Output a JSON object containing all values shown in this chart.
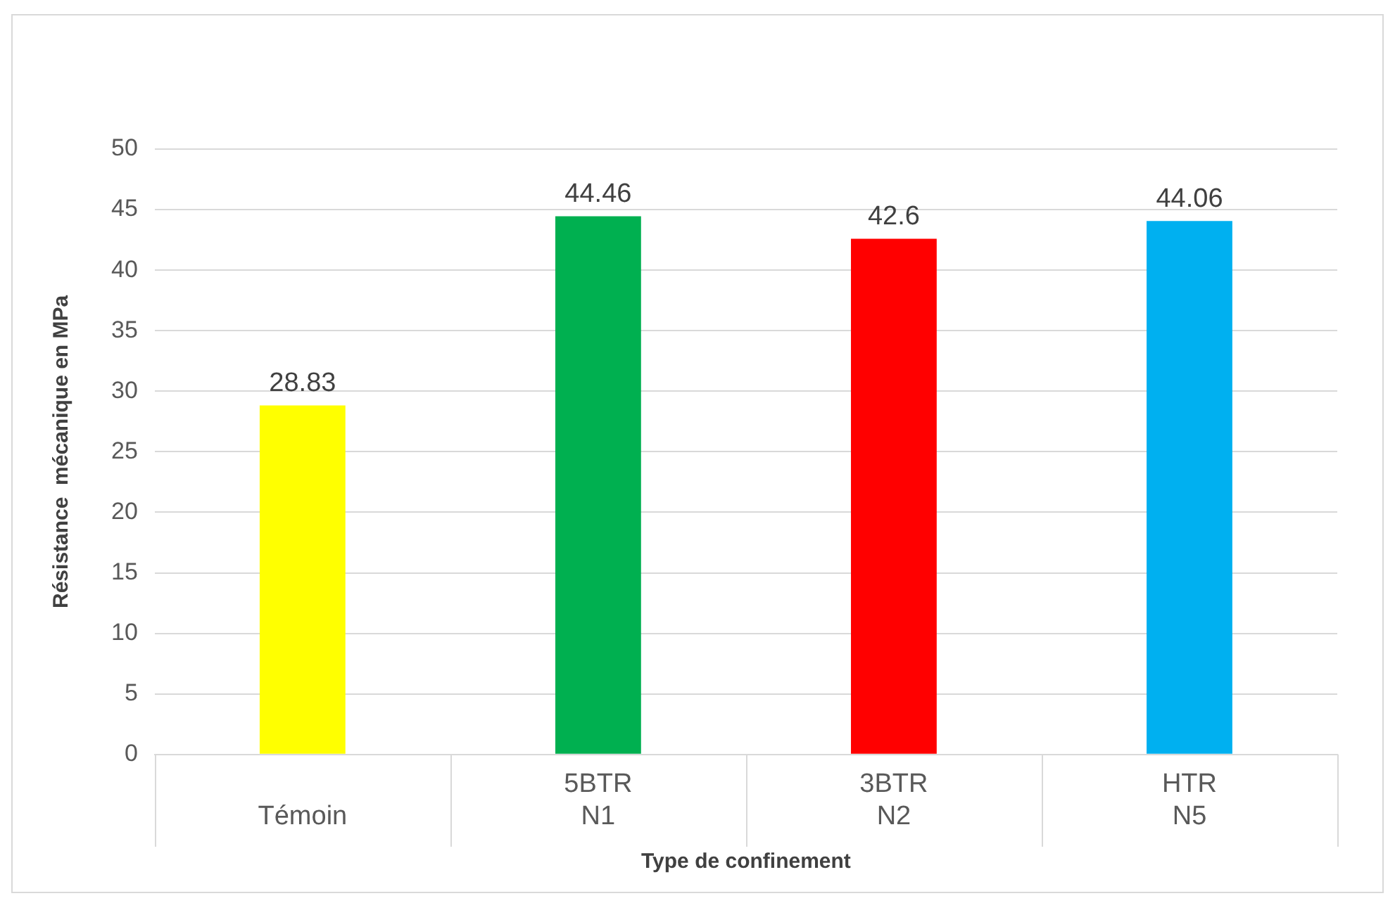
{
  "chart_data": {
    "type": "bar",
    "xlabel": "Type de confinement",
    "ylabel": "Résistance  mécanique en MPa",
    "categories": [
      "Témoin",
      "5BTR\nN1",
      "3BTR\nN2",
      "HTR\nN5"
    ],
    "values": [
      28.83,
      44.46,
      42.6,
      44.06
    ],
    "colors": [
      "#ffff00",
      "#00b050",
      "#ff0000",
      "#00b0f0"
    ],
    "ylim": [
      0,
      50
    ],
    "yticks": [
      0,
      5,
      10,
      15,
      20,
      25,
      30,
      35,
      40,
      45,
      50
    ],
    "grid": "y",
    "data_labels": true
  }
}
